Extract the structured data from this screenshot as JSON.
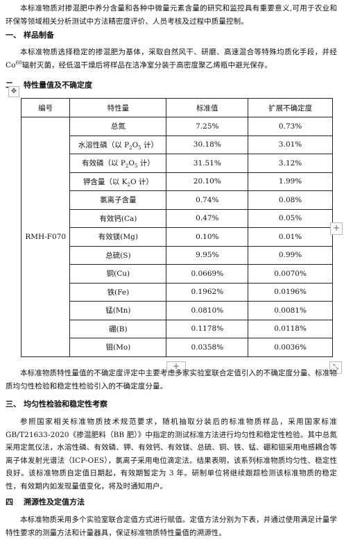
{
  "intro": {
    "text": "本标准物质对掺混肥中养分含量和各种中微量元素含量的研究和监控具有重要意义,可用于农业和环保等领域相关分析测试中方法精密度评价、人员考核及过程中质量控制。"
  },
  "section1": {
    "num": "一、",
    "title": "样品制备",
    "text_a": "本标准物质选择稳定的掺混肥为基体，采取自然风干、研磨、高速混合等特殊均质化手段，并经 Co",
    "text_sup": "60",
    "text_b": "辐射灭菌，经低温干燥后将样品在洁净室分装于高密度聚乙烯瓶中避光保存。"
  },
  "section2": {
    "num": "二、",
    "title": "特性量值及不确定度",
    "after_text": "本标准物质特性量值的不确定度评定中主要考虑多家实验室联合定值引入的不确定度分量、标准物质均匀性检验和稳定性检验引入的不确定度分量。"
  },
  "table": {
    "headers": [
      "编号",
      "特性量",
      "标准值",
      "扩展不确定度"
    ],
    "sample_id": "RMH-F070",
    "rows": [
      {
        "pre": "总氮",
        "sub": "",
        "post": "",
        "value": "7.25%",
        "uncertainty": "0.73%"
      },
      {
        "pre": "水溶性磷（以 P",
        "sub": "2",
        "post": "O",
        "sub2": "5",
        "post2": " 计）",
        "value": "30.18%",
        "uncertainty": "3.01%"
      },
      {
        "pre": "有效磷（以 P",
        "sub": "2",
        "post": "O",
        "sub2": "5",
        "post2": " 计）",
        "value": "31.51%",
        "uncertainty": "3.12%"
      },
      {
        "pre": "钾含量（以 K",
        "sub": "2",
        "post": "O 计）",
        "value": "20.10%",
        "uncertainty": "1.99%"
      },
      {
        "pre": "氯离子含量",
        "sub": "",
        "post": "",
        "value": "0.74%",
        "uncertainty": "0.08%"
      },
      {
        "pre": "有效钙(Ca)",
        "sub": "",
        "post": "",
        "value": "0.47%",
        "uncertainty": "0.05%"
      },
      {
        "pre": "有效镁(Mg)",
        "sub": "",
        "post": "",
        "value": "0.10%",
        "uncertainty": "0.01%"
      },
      {
        "pre": "总硫(S)",
        "sub": "",
        "post": "",
        "value": "9.95%",
        "uncertainty": "0.99%"
      },
      {
        "pre": "铜(Cu)",
        "sub": "",
        "post": "",
        "value": "0.0669%",
        "uncertainty": "0.0070%"
      },
      {
        "pre": "铁(Fe)",
        "sub": "",
        "post": "",
        "value": "0.1962%",
        "uncertainty": "0.0196%"
      },
      {
        "pre": "锰(Mn)",
        "sub": "",
        "post": "",
        "value": "0.0810%",
        "uncertainty": "0.0081%"
      },
      {
        "pre": "硼(B)",
        "sub": "",
        "post": "",
        "value": "0.1178%",
        "uncertainty": "0.0118%"
      },
      {
        "pre": "钼(Mo)",
        "sub": "",
        "post": "",
        "value": "0.0358%",
        "uncertainty": "0.0036%"
      }
    ]
  },
  "section3": {
    "num": "三、",
    "title": "均匀性检验和稳定性考察",
    "text": "参照国家相关标准物质技术规范要求，随机抽取分装后的标准物质样品，采用国家标准GB/T21633-2020《掺混肥料（BB 肥）》中指定的测试标准方法进行均匀性和稳定性检验。其中总氮采用定氮仪法，水溶性磷、有效磷、钾、有效钙、有效镁、总硫、铜、铁、锰、硼和钼采用电感耦合等离子体发射光谱法（ICP-OES），氯离子采用电位滴定法。结果表明，该系列标准物质均匀性、稳定性良好。该标准物质自定值日期起，有效期暂定为 3 年。研制单位将继续跟踪检测该标准物质的稳定性，有效期内如发现量值变化，将及时通知用户。"
  },
  "section4": {
    "num": "四",
    "title": "溯源性及定值方法",
    "text": "本标准物质采用多个实验室联合定值方式进行赋值。定值方法分别为下表，并通过使用满足计量学特性要求的测量方法和计量器具，保证标准物质特性量值的溯源性。"
  },
  "editor": {
    "move_icon": "move-handle-icon",
    "add_column_icon": "plus-icon",
    "add_row_icon": "plus-icon",
    "resize_icon": "resize-icon",
    "move_glyph": "✥",
    "plus_glyph": "+",
    "resize_glyph": "⤡"
  }
}
